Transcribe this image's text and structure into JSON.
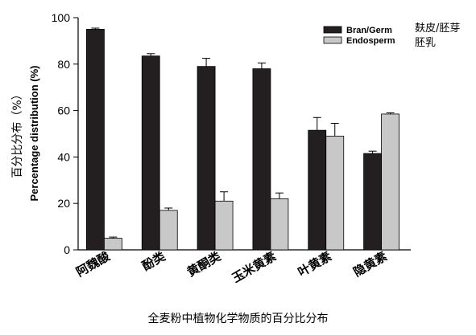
{
  "chart_data": {
    "type": "bar",
    "ylabel_cn": "百分比分布（%）",
    "ylabel": "Percentage distribution (%)",
    "ylim": [
      0,
      100
    ],
    "yticks": [
      0,
      20,
      40,
      60,
      80,
      100
    ],
    "categories": [
      "阿魏酸",
      "酚类",
      "黄酮类",
      "玉米黄素",
      "叶黄素",
      "隐黄素"
    ],
    "series": [
      {
        "name": "Bran/Germ",
        "color": "#231f20",
        "values": [
          95,
          83.5,
          79,
          78,
          51.5,
          41.5
        ],
        "errors": [
          0.5,
          1,
          3.5,
          2.5,
          5.5,
          1
        ]
      },
      {
        "name": "Endosperm",
        "color": "#c8c8c8",
        "values": [
          5,
          17,
          21,
          22,
          49,
          58.5
        ],
        "errors": [
          0.5,
          1,
          4,
          2.5,
          5.5,
          0.5
        ]
      }
    ],
    "legend_position": "top-right",
    "grid": false
  },
  "side_labels": [
    "麸皮/胚芽",
    "胚乳"
  ],
  "caption": "全麦粉中植物化学物质的百分比分布"
}
